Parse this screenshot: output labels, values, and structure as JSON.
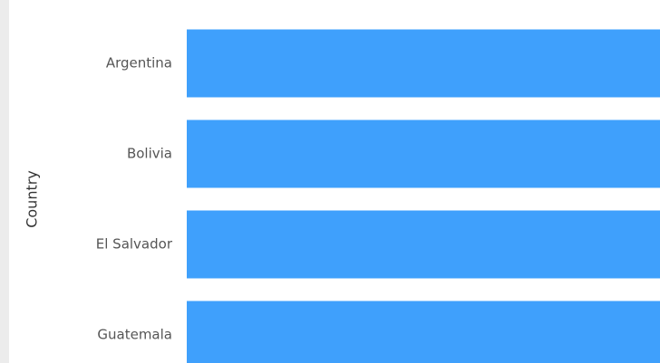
{
  "chart_data": {
    "type": "barh",
    "y_label": "Country",
    "categories": [
      "Argentina",
      "Bolivia",
      "El Salvador",
      "Guatemala"
    ],
    "values": [
      100,
      100,
      100,
      100
    ],
    "color": "#3fa0fc",
    "xlim": [
      0,
      100
    ]
  }
}
